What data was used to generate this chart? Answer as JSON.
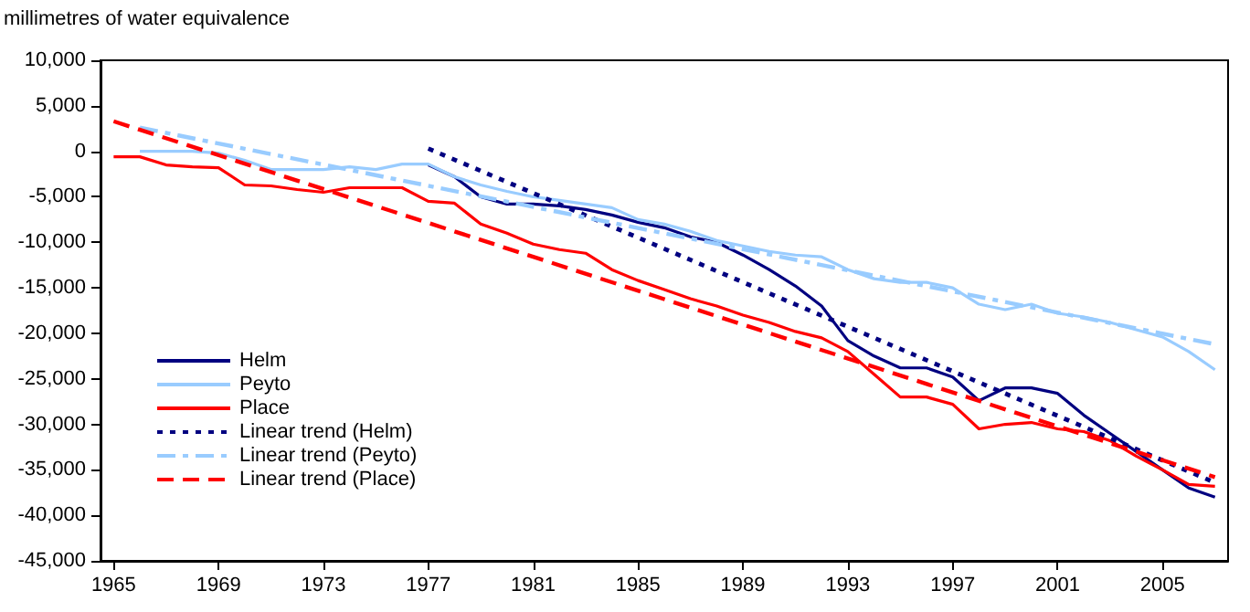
{
  "chart_data": {
    "type": "line",
    "ylabel": "millimetres of water equivalence",
    "xlim": [
      1964.5,
      2007.5
    ],
    "xticks": [
      1965,
      1969,
      1973,
      1977,
      1981,
      1985,
      1989,
      1993,
      1997,
      2001,
      2005
    ],
    "ylim": [
      -45000,
      10000
    ],
    "yticks": [
      {
        "value": -45000,
        "label": "-45,000"
      },
      {
        "value": -40000,
        "label": "-40,000"
      },
      {
        "value": -35000,
        "label": "-35,000"
      },
      {
        "value": -30000,
        "label": "-30,000"
      },
      {
        "value": -25000,
        "label": "-25,000"
      },
      {
        "value": -20000,
        "label": "-20,000"
      },
      {
        "value": -15000,
        "label": "-15,000"
      },
      {
        "value": -10000,
        "label": "-10,000"
      },
      {
        "value": -5000,
        "label": "-5,000"
      },
      0,
      {
        "value": 5000,
        "label": "5,000"
      },
      {
        "value": 10000,
        "label": "10,000"
      }
    ],
    "grid": false,
    "legend": "bottom left",
    "marker": "none",
    "series": [
      {
        "name": "Helm",
        "color": "#000080",
        "line_style": "solid",
        "x": [
          1977,
          1978,
          1979,
          1980,
          1981,
          1982,
          1983,
          1984,
          1985,
          1986,
          1987,
          1988,
          1989,
          1990,
          1991,
          1992,
          1993,
          1994,
          1995,
          1996,
          1997,
          1998,
          1999,
          2000,
          2001,
          2002,
          2003,
          2004,
          2005,
          2006,
          2007
        ],
        "values": [
          -1500,
          -2800,
          -5000,
          -5800,
          -5800,
          -6000,
          -6400,
          -7000,
          -7800,
          -8400,
          -9400,
          -10000,
          -11400,
          -13000,
          -14800,
          -17000,
          -20800,
          -22500,
          -23800,
          -23800,
          -24800,
          -27400,
          -26000,
          -26000,
          -26600,
          -29000,
          -31000,
          -33000,
          -35000,
          -37000,
          -38000
        ]
      },
      {
        "name": "Peyto",
        "color": "#99ccff",
        "line_style": "solid",
        "x": [
          1966,
          1967,
          1968,
          1969,
          1970,
          1971,
          1972,
          1973,
          1974,
          1975,
          1976,
          1977,
          1978,
          1979,
          1980,
          1981,
          1982,
          1983,
          1984,
          1985,
          1986,
          1987,
          1988,
          1989,
          1990,
          1991,
          1992,
          1993,
          1994,
          1995,
          1996,
          1997,
          1998,
          1999,
          2000,
          2001,
          2002,
          2003,
          2004,
          2005,
          2006,
          2007
        ],
        "values": [
          0,
          0,
          0,
          -200,
          -1000,
          -2000,
          -2000,
          -2000,
          -1700,
          -2000,
          -1400,
          -1400,
          -2800,
          -3700,
          -4400,
          -5000,
          -5400,
          -5800,
          -6200,
          -7500,
          -8000,
          -8800,
          -9800,
          -10400,
          -11000,
          -11400,
          -11600,
          -13000,
          -14000,
          -14400,
          -14400,
          -15000,
          -16800,
          -17400,
          -16800,
          -17800,
          -18200,
          -18800,
          -19600,
          -20400,
          -22000,
          -24000
        ]
      },
      {
        "name": "Place",
        "color": "#ff0000",
        "line_style": "solid",
        "x": [
          1965,
          1966,
          1967,
          1968,
          1969,
          1970,
          1971,
          1972,
          1973,
          1974,
          1975,
          1976,
          1977,
          1978,
          1979,
          1980,
          1981,
          1982,
          1983,
          1984,
          1985,
          1986,
          1987,
          1988,
          1989,
          1990,
          1991,
          1992,
          1993,
          1994,
          1995,
          1996,
          1997,
          1998,
          1999,
          2000,
          2001,
          2002,
          2003,
          2004,
          2005,
          2006,
          2007
        ],
        "values": [
          -600,
          -600,
          -1500,
          -1700,
          -1800,
          -3700,
          -3800,
          -4200,
          -4500,
          -4000,
          -4000,
          -4000,
          -5500,
          -5700,
          -8000,
          -9000,
          -10200,
          -10800,
          -11200,
          -13000,
          -14200,
          -15200,
          -16200,
          -17000,
          -18000,
          -18800,
          -19800,
          -20500,
          -22000,
          -24500,
          -27000,
          -27000,
          -27800,
          -30500,
          -30000,
          -29800,
          -30500,
          -30800,
          -31800,
          -33500,
          -35000,
          -36600,
          -36800
        ]
      },
      {
        "name": "Linear trend (Helm)",
        "color": "#000080",
        "line_style": "dotted",
        "x": [
          1977,
          2007
        ],
        "values": [
          300,
          -36400
        ]
      },
      {
        "name": "Linear trend (Peyto)",
        "color": "#99ccff",
        "line_style": "dashdot",
        "x": [
          1966,
          2007
        ],
        "values": [
          2600,
          -21200
        ]
      },
      {
        "name": "Linear trend (Place)",
        "color": "#ff0000",
        "line_style": "dashed",
        "x": [
          1965,
          2007
        ],
        "values": [
          3300,
          -35800
        ]
      }
    ]
  }
}
